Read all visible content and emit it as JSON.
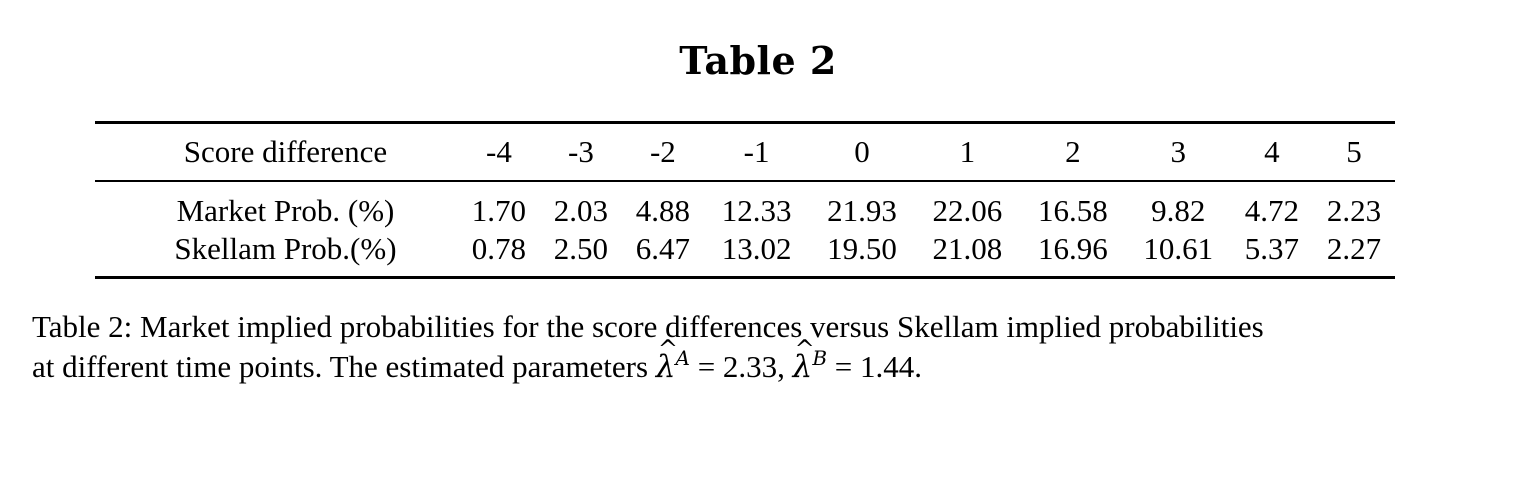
{
  "title": "Table 2",
  "table": {
    "headers": [
      "Score difference",
      "-4",
      "-3",
      "-2",
      "-1",
      "0",
      "1",
      "2",
      "3",
      "4",
      "5"
    ],
    "rows": [
      {
        "label": "Market Prob. (%)",
        "values": [
          "1.70",
          "2.03",
          "4.88",
          "12.33",
          "21.93",
          "22.06",
          "16.58",
          "9.82",
          "4.72",
          "2.23"
        ]
      },
      {
        "label": "Skellam Prob.(%)",
        "values": [
          "0.78",
          "2.50",
          "6.47",
          "13.02",
          "19.50",
          "21.08",
          "16.96",
          "10.61",
          "5.37",
          "2.27"
        ]
      }
    ]
  },
  "caption": {
    "line1": "Table 2: Market implied probabilities for the score differences versus Skellam implied probabilities",
    "line2_prefix": "at different time points. The estimated parameters ",
    "lambda_a_symbol": "λ",
    "lambda_a_sup": "A",
    "lambda_a_value": " = 2.33, ",
    "lambda_b_symbol": "λ",
    "lambda_b_sup": "B",
    "lambda_b_value": " = 1.44."
  }
}
